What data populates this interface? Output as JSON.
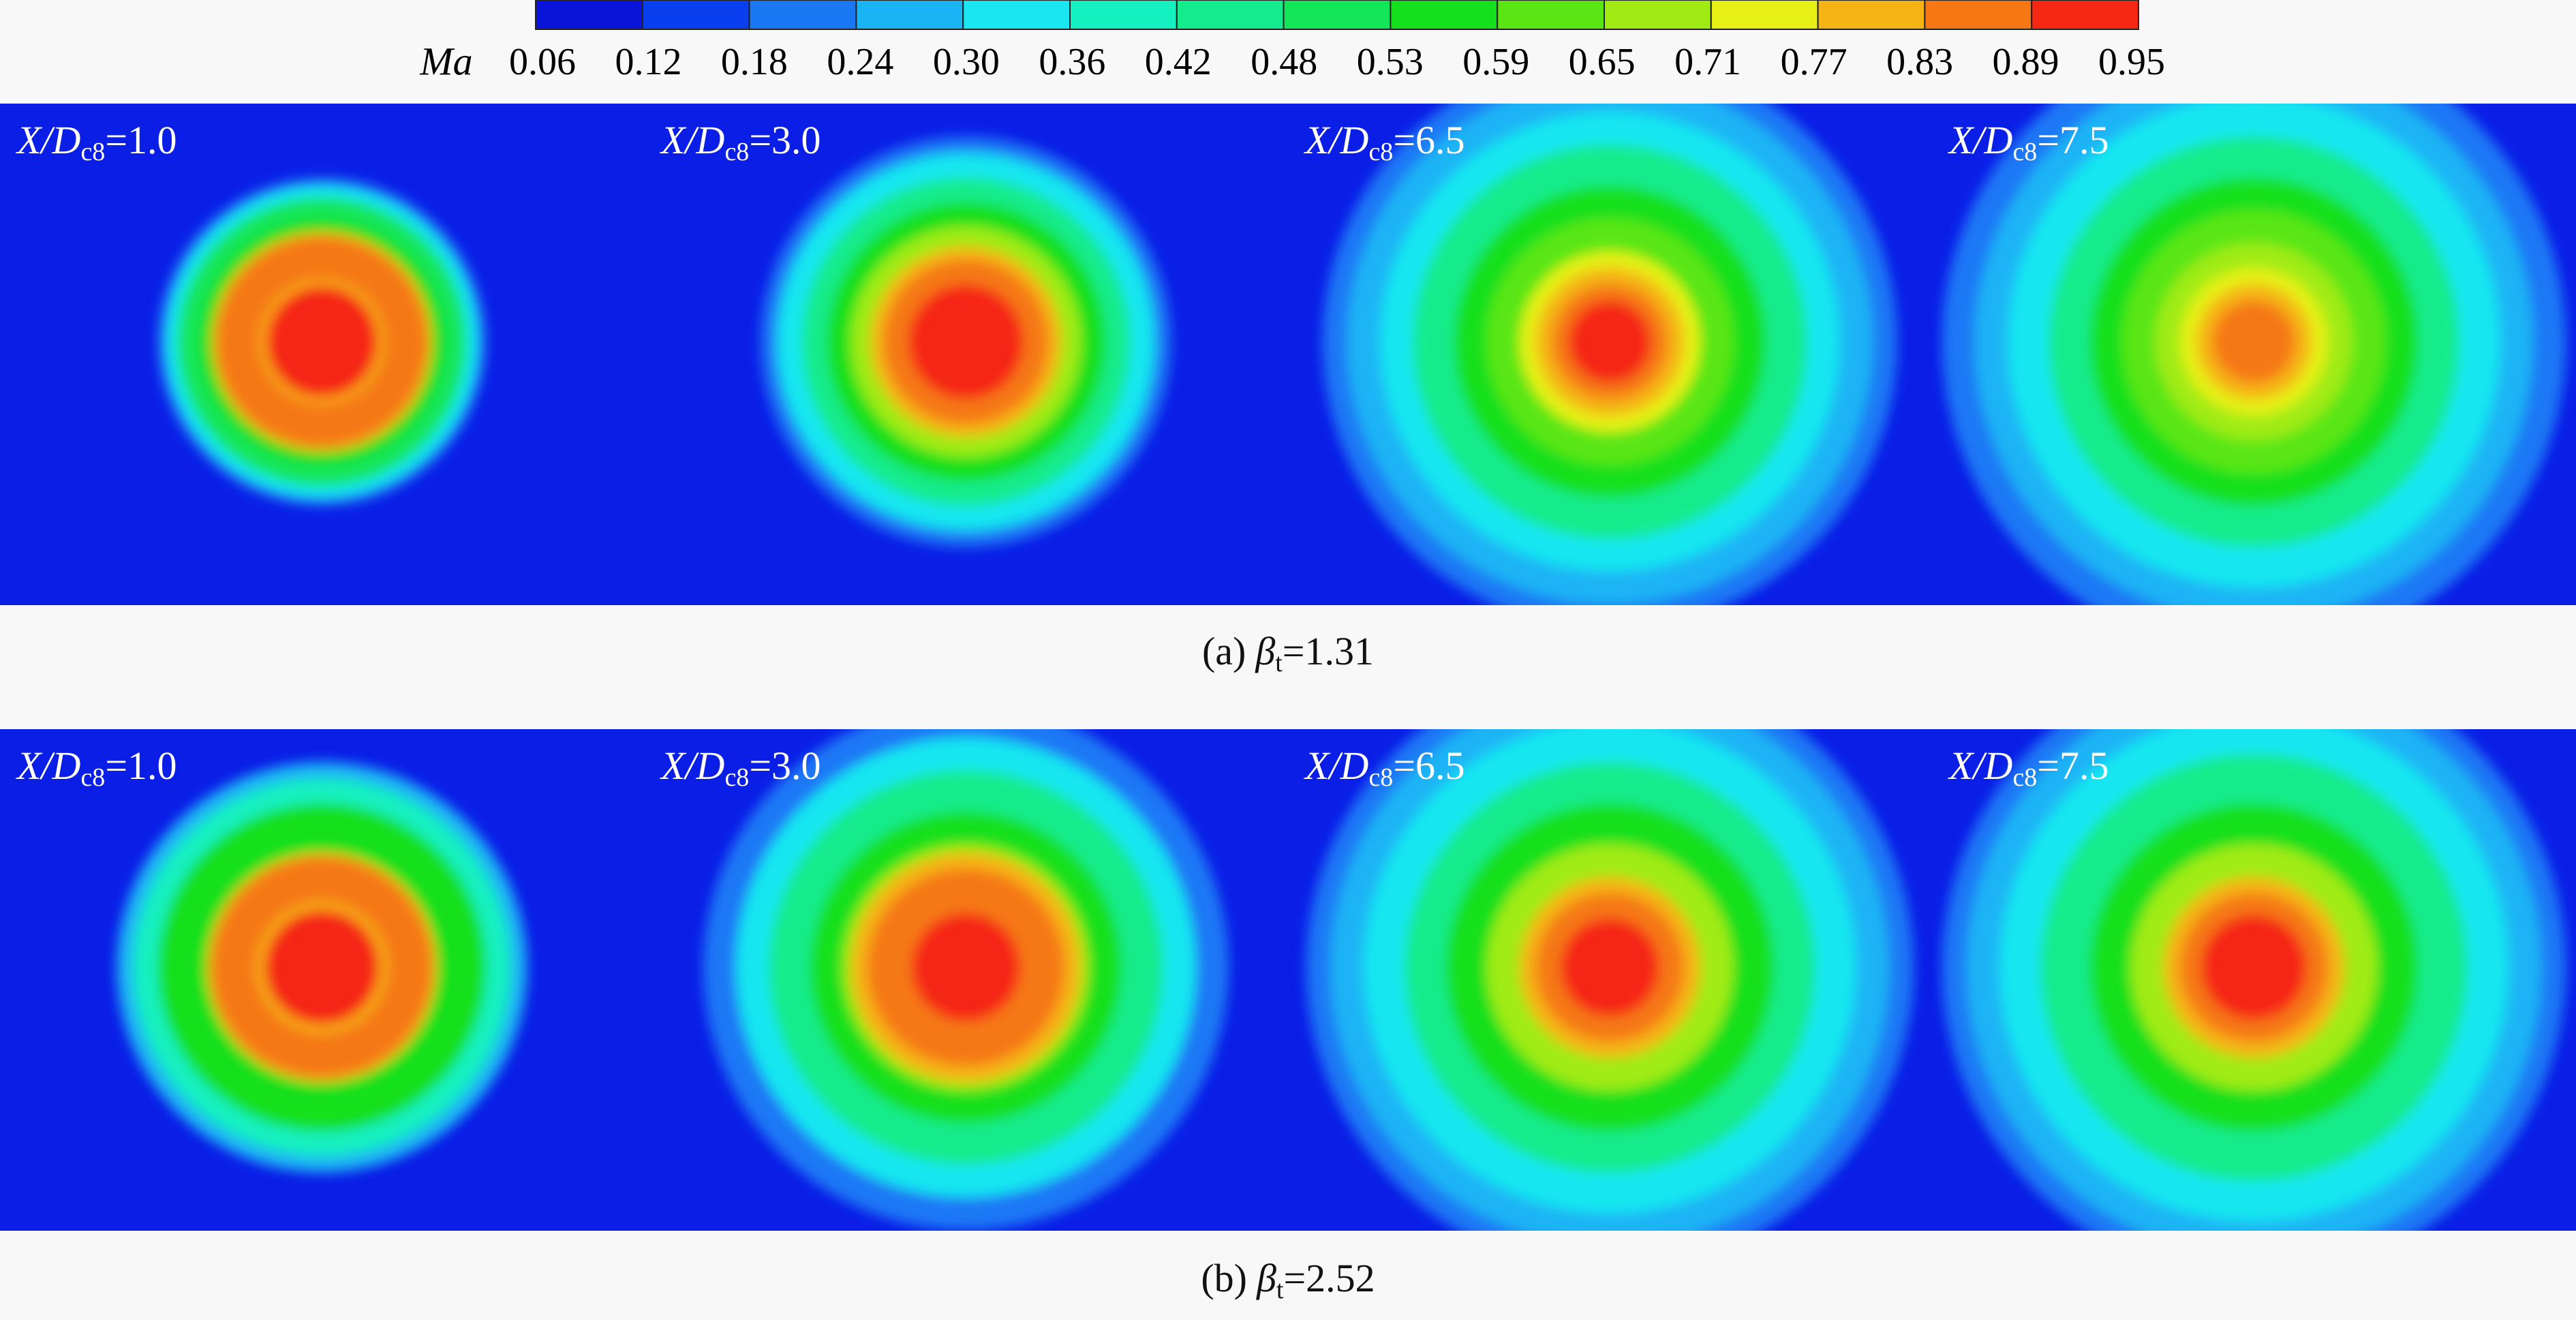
{
  "colorbar": {
    "label": "Ma",
    "ticks": [
      "0.06",
      "0.12",
      "0.18",
      "0.24",
      "0.30",
      "0.36",
      "0.42",
      "0.48",
      "0.53",
      "0.59",
      "0.65",
      "0.71",
      "0.77",
      "0.83",
      "0.89",
      "0.95"
    ],
    "colors": [
      "#0a14d8",
      "#0a3ff0",
      "#1a78f5",
      "#1ab4f5",
      "#19e6f0",
      "#14f0c0",
      "#14eb8c",
      "#14e65a",
      "#14e01e",
      "#5ae614",
      "#a0eb14",
      "#e6f014",
      "#f5b414",
      "#f57814",
      "#f52814"
    ]
  },
  "rows": [
    {
      "caption": {
        "prefix": "(a)",
        "symbol": "β",
        "subscript": "t",
        "suffix": "=1.31"
      },
      "panels": [
        {
          "label": "X/D",
          "subscript": "c8",
          "suffix": "=1.0"
        },
        {
          "label": "X/D",
          "subscript": "c8",
          "suffix": "=3.0"
        },
        {
          "label": "X/D",
          "subscript": "c8",
          "suffix": "=6.5"
        },
        {
          "label": "X/D",
          "subscript": "c8",
          "suffix": "=7.5"
        }
      ]
    },
    {
      "caption": {
        "prefix": "(b)",
        "symbol": "β",
        "subscript": "t",
        "suffix": "=2.52"
      },
      "panels": [
        {
          "label": "X/D",
          "subscript": "c8",
          "suffix": "=1.0"
        },
        {
          "label": "X/D",
          "subscript": "c8",
          "suffix": "=3.0"
        },
        {
          "label": "X/D",
          "subscript": "c8",
          "suffix": "=6.5"
        },
        {
          "label": "X/D",
          "subscript": "c8",
          "suffix": "=7.5"
        }
      ]
    }
  ]
}
